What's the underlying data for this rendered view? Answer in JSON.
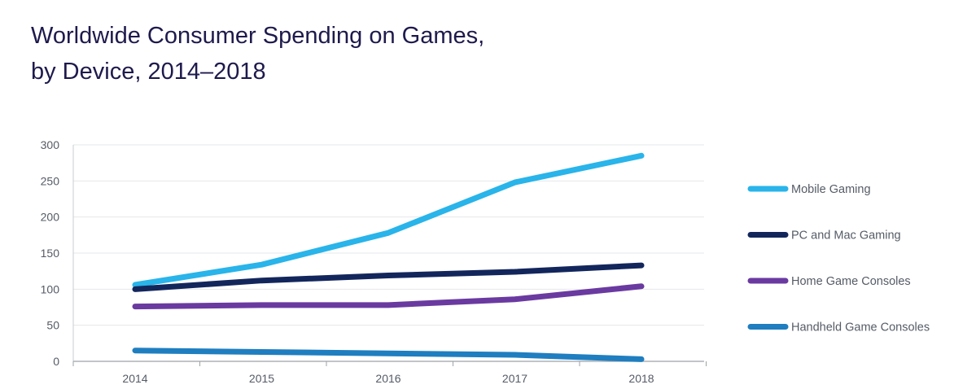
{
  "chart_data": {
    "type": "line",
    "title_lines": [
      "Worldwide Consumer Spending on Games,",
      "by Device, 2014–2018"
    ],
    "categories": [
      "2014",
      "2015",
      "2016",
      "2017",
      "2018"
    ],
    "ylim": [
      0,
      300
    ],
    "yticks": [
      0,
      50,
      100,
      150,
      200,
      250,
      300
    ],
    "grid": true,
    "legend_position": "right",
    "series": [
      {
        "name": "Mobile Gaming",
        "color": "#29b4ea",
        "values": [
          106,
          134,
          178,
          248,
          285
        ]
      },
      {
        "name": "PC and Mac Gaming",
        "color": "#13265c",
        "values": [
          100,
          112,
          119,
          124,
          133
        ]
      },
      {
        "name": "Home Game Consoles",
        "color": "#6a3aa0",
        "values": [
          76,
          78,
          78,
          86,
          104
        ]
      },
      {
        "name": "Handheld Game Consoles",
        "color": "#1f7ec0",
        "values": [
          15,
          13,
          11,
          9,
          3
        ]
      }
    ]
  }
}
